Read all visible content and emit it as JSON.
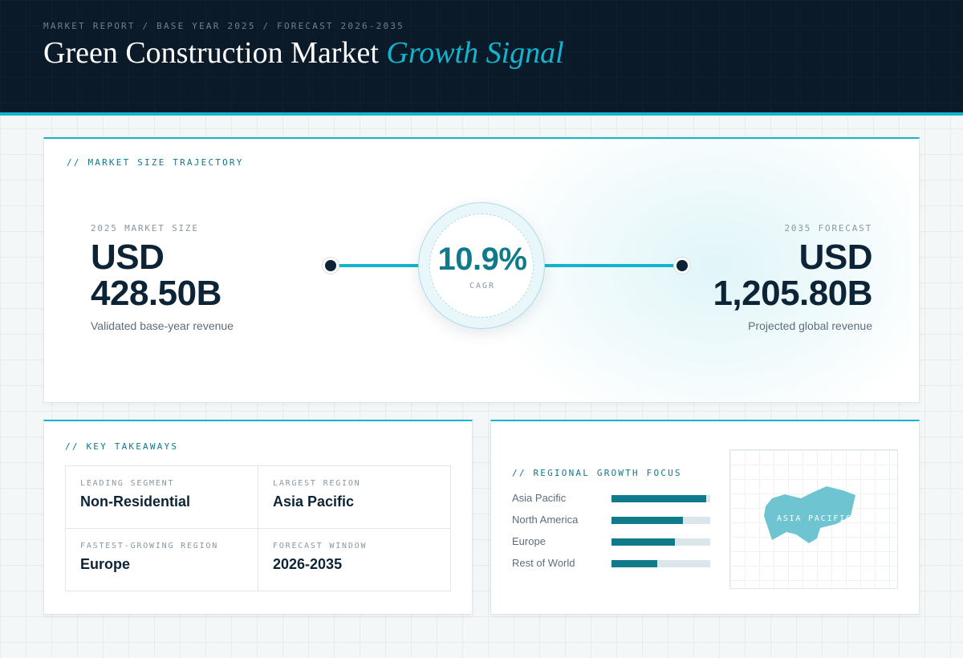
{
  "header": {
    "breadcrumb": "MARKET REPORT / BASE YEAR 2025 / FORECAST 2026-2035",
    "title_main": "Green Construction Market",
    "title_accent": "Growth Signal"
  },
  "trajectory": {
    "label": "// MARKET SIZE TRAJECTORY",
    "start": {
      "label": "2025 MARKET SIZE",
      "currency": "USD",
      "value": "428.50B",
      "sub": "Validated base-year revenue"
    },
    "cagr": {
      "value": "10.9%",
      "label": "CAGR"
    },
    "end": {
      "label": "2035 FORECAST",
      "currency": "USD",
      "value": "1,205.80B",
      "sub": "Projected global revenue"
    }
  },
  "takeaways": {
    "label": "// KEY TAKEAWAYS",
    "items": [
      {
        "label": "LEADING SEGMENT",
        "value": "Non-Residential"
      },
      {
        "label": "LARGEST REGION",
        "value": "Asia Pacific"
      },
      {
        "label": "FASTEST-GROWING REGION",
        "value": "Europe"
      },
      {
        "label": "FORECAST WINDOW",
        "value": "2026-2035"
      }
    ]
  },
  "regional": {
    "label": "// REGIONAL GROWTH FOCUS",
    "regions": [
      {
        "name": "Asia Pacific",
        "share": 0.96
      },
      {
        "name": "North America",
        "share": 0.72
      },
      {
        "name": "Europe",
        "share": 0.64
      },
      {
        "name": "Rest of World",
        "share": 0.46
      }
    ],
    "map_label": "ASIA PACIFIC"
  },
  "colors": {
    "accent": "#13b4cd",
    "teal": "#0f7a8a",
    "navy": "#0a1a28",
    "text_dark": "#0d2437"
  }
}
